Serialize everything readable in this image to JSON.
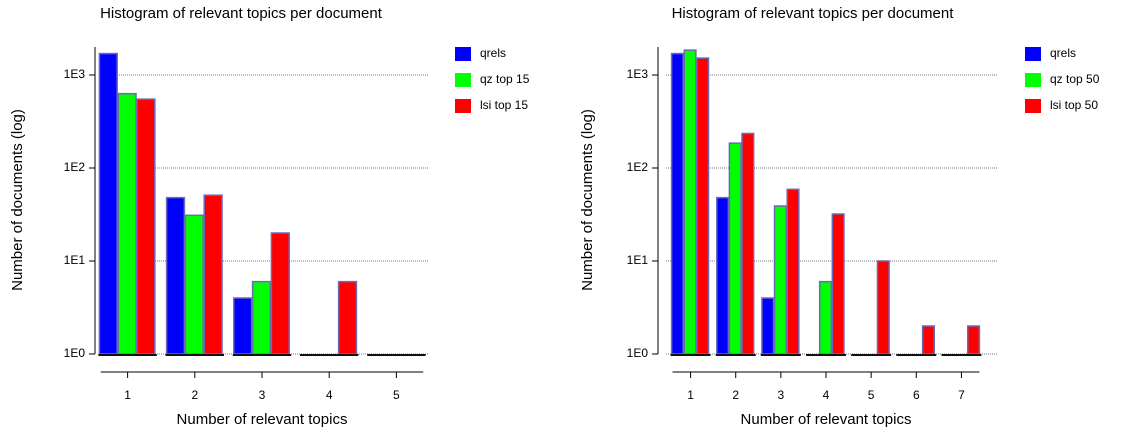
{
  "chart_data": [
    {
      "type": "bar",
      "title": "Histogram of relevant topics per document",
      "x_label": "Number of relevant topics",
      "y_label": "Number of documents (log)",
      "categories": [
        "1",
        "2",
        "3",
        "4",
        "5"
      ],
      "series": [
        {
          "name": "qrels",
          "color": "#0000ff",
          "values": [
            1700,
            48,
            4,
            1,
            1
          ]
        },
        {
          "name": "qz top 15",
          "color": "#00ff00",
          "values": [
            630,
            31,
            6,
            1,
            1
          ]
        },
        {
          "name": "lsi top 15",
          "color": "#ff0000",
          "values": [
            550,
            51,
            20,
            6,
            1
          ]
        }
      ],
      "ylim": [
        1,
        2000
      ],
      "yticks": [
        {
          "value": 1,
          "label": "1E0"
        },
        {
          "value": 10,
          "label": "1E1"
        },
        {
          "value": 100,
          "label": "1E2"
        },
        {
          "value": 1000,
          "label": "1E3"
        }
      ],
      "log_scale": true,
      "grid": true,
      "legend": "right"
    },
    {
      "type": "bar",
      "title": "Histogram of relevant topics per document",
      "x_label": "Number of relevant topics",
      "y_label": "Number of documents (log)",
      "categories": [
        "1",
        "2",
        "3",
        "4",
        "5",
        "6",
        "7"
      ],
      "series": [
        {
          "name": "qrels",
          "color": "#0000ff",
          "values": [
            1700,
            48,
            4,
            1,
            1,
            1,
            1
          ]
        },
        {
          "name": "qz top 50",
          "color": "#00ff00",
          "values": [
            1850,
            185,
            39,
            6,
            1,
            1,
            1
          ]
        },
        {
          "name": "lsi top 50",
          "color": "#ff0000",
          "values": [
            1520,
            235,
            59,
            32,
            10,
            2,
            2
          ]
        }
      ],
      "ylim": [
        1,
        2000
      ],
      "yticks": [
        {
          "value": 1,
          "label": "1E0"
        },
        {
          "value": 10,
          "label": "1E1"
        },
        {
          "value": 100,
          "label": "1E2"
        },
        {
          "value": 1000,
          "label": "1E3"
        }
      ],
      "log_scale": true,
      "grid": true,
      "legend": "right"
    }
  ]
}
